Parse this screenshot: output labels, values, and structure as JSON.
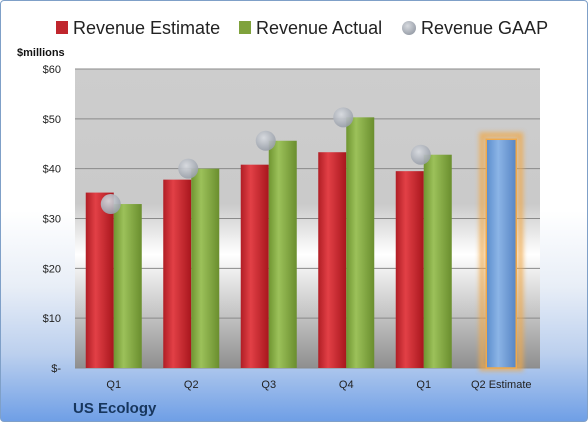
{
  "chart_data": {
    "type": "bar",
    "ylabel": "$millions",
    "ylim": [
      0,
      60
    ],
    "yticks": [
      {
        "value": 0,
        "label": "$-"
      },
      {
        "value": 10,
        "label": "$10"
      },
      {
        "value": 20,
        "label": "$20"
      },
      {
        "value": 30,
        "label": "$30"
      },
      {
        "value": 40,
        "label": "$40"
      },
      {
        "value": 50,
        "label": "$50"
      },
      {
        "value": 60,
        "label": "$60"
      }
    ],
    "grid": true,
    "legend_position": "top",
    "categories": [
      "Q1",
      "Q2",
      "Q3",
      "Q4",
      "Q1",
      "Q2 Estimate"
    ],
    "series": [
      {
        "name": "Revenue Estimate",
        "color": "#c0262d",
        "values": [
          35.2,
          37.8,
          40.8,
          43.3,
          39.5,
          null
        ]
      },
      {
        "name": "Revenue Actual",
        "color": "#7fa23c",
        "values": [
          32.9,
          40.0,
          45.6,
          50.3,
          42.8,
          null
        ]
      },
      {
        "name": "Revenue GAAP",
        "color": "#a9afb9",
        "marker": "circle",
        "values": [
          32.9,
          40.0,
          45.6,
          50.3,
          42.8,
          null
        ]
      },
      {
        "name": "Q2 Estimate",
        "color": "#6f9fd8",
        "highlight": "#f0a94a",
        "values": [
          null,
          null,
          null,
          null,
          null,
          45.9
        ]
      }
    ]
  },
  "footer": {
    "company": "US Ecology"
  }
}
